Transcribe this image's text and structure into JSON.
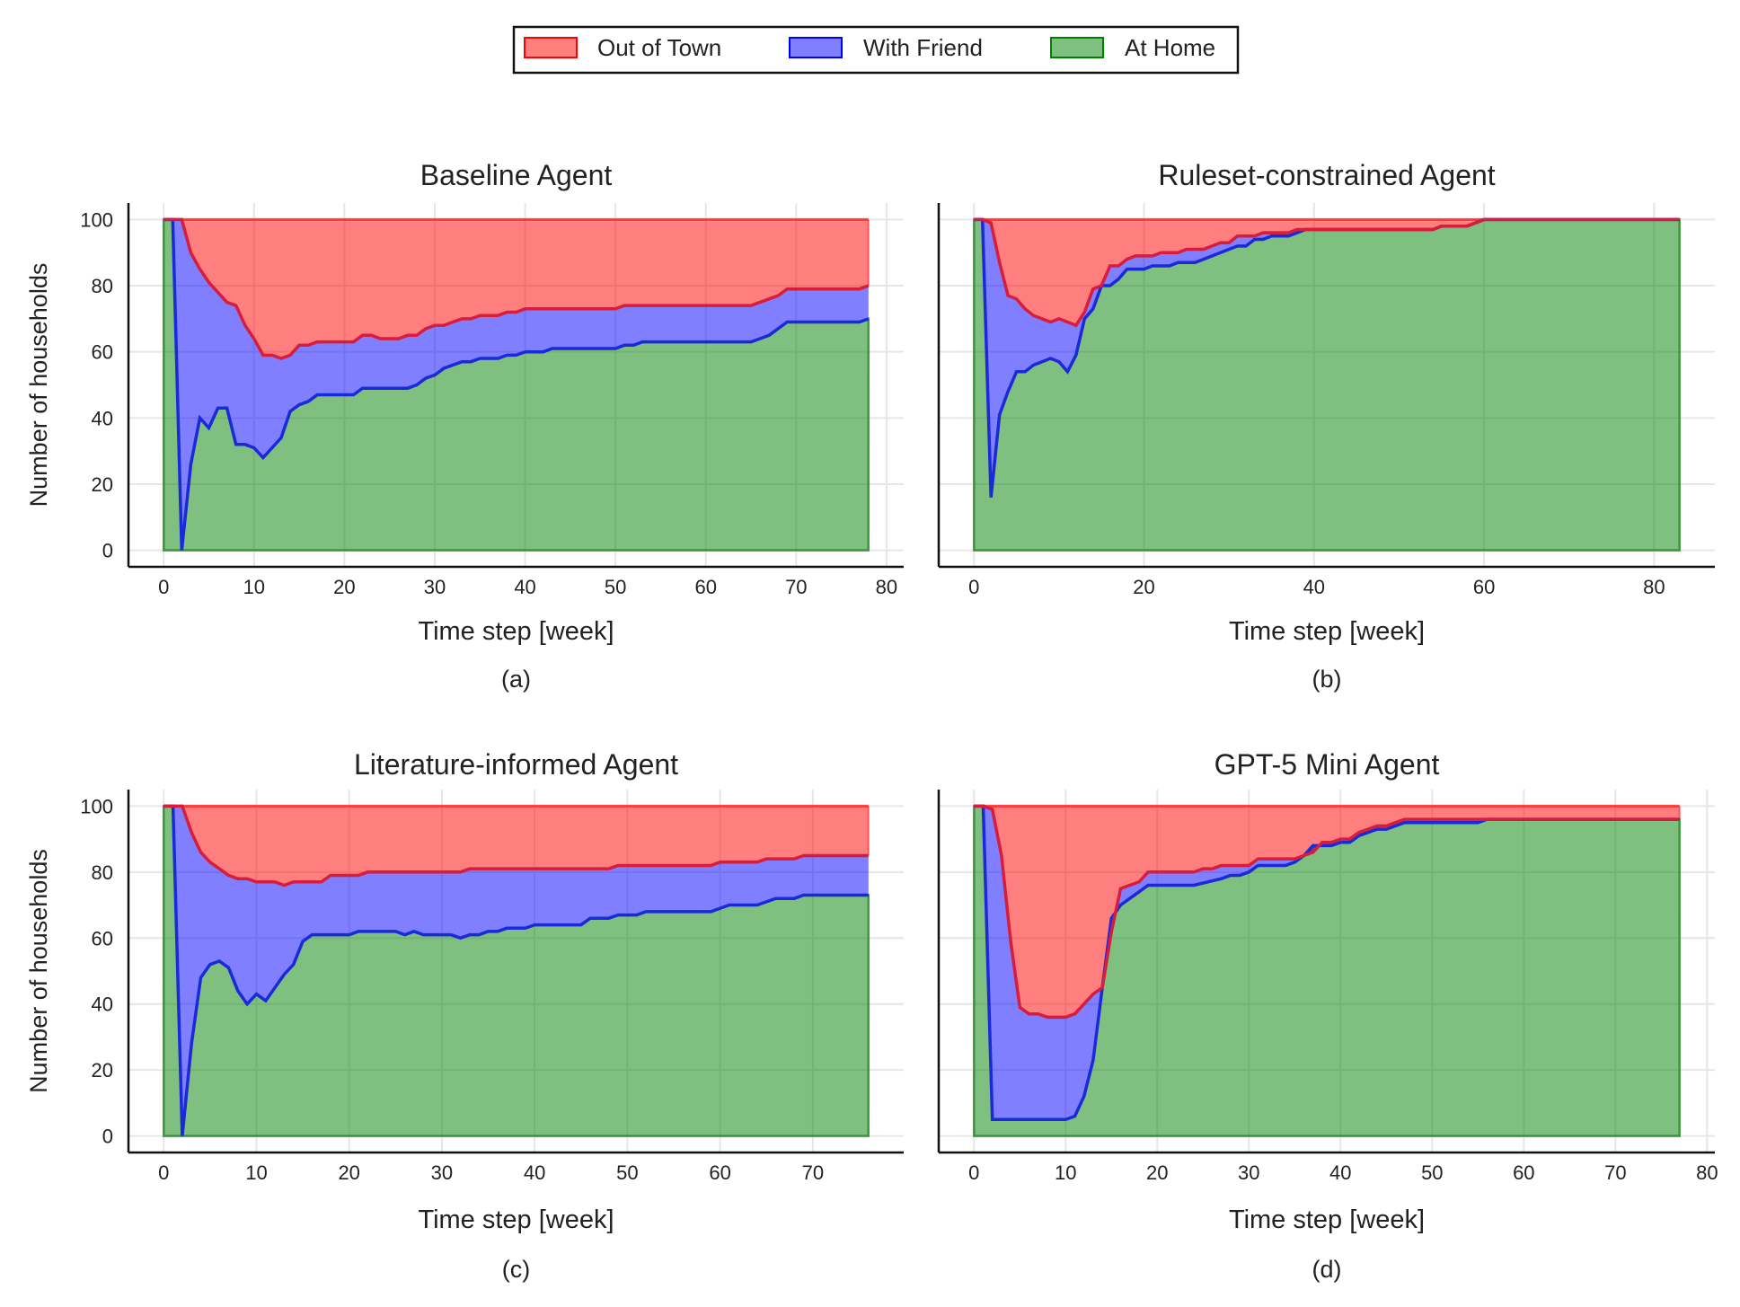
{
  "legend": {
    "items": [
      {
        "label": "Out of Town",
        "color": "#ff0000"
      },
      {
        "label": "With Friend",
        "color": "#0000ff"
      },
      {
        "label": "At Home",
        "color": "#008000"
      }
    ]
  },
  "chart_data": [
    {
      "type": "area",
      "title": "Baseline Agent",
      "caption": "(a)",
      "xlabel": "Time step [week]",
      "ylabel": "Number of households",
      "xlim": [
        -3.9,
        81.9
      ],
      "ylim": [
        -5,
        105
      ],
      "xticks": [
        0,
        10,
        20,
        30,
        40,
        50,
        60,
        70,
        80
      ],
      "yticks": [
        0,
        20,
        40,
        60,
        80,
        100
      ],
      "xmax": 78,
      "total": 100,
      "at_home": [
        [
          0,
          100
        ],
        [
          1,
          100
        ],
        [
          2,
          0
        ],
        [
          3,
          26
        ],
        [
          4,
          40
        ],
        [
          5,
          37
        ],
        [
          6,
          43
        ],
        [
          7,
          43
        ],
        [
          8,
          32
        ],
        [
          9,
          32
        ],
        [
          10,
          31
        ],
        [
          11,
          28
        ],
        [
          12,
          31
        ],
        [
          13,
          34
        ],
        [
          14,
          42
        ],
        [
          15,
          44
        ],
        [
          16,
          45
        ],
        [
          17,
          47
        ],
        [
          21,
          47
        ],
        [
          22,
          49
        ],
        [
          27,
          49
        ],
        [
          28,
          50
        ],
        [
          29,
          52
        ],
        [
          30,
          53
        ],
        [
          31,
          55
        ],
        [
          33,
          57
        ],
        [
          34,
          57
        ],
        [
          35,
          58
        ],
        [
          37,
          58
        ],
        [
          38,
          59
        ],
        [
          39,
          59
        ],
        [
          40,
          60
        ],
        [
          42,
          60
        ],
        [
          43,
          61
        ],
        [
          50,
          61
        ],
        [
          51,
          62
        ],
        [
          52,
          62
        ],
        [
          53,
          63
        ],
        [
          65,
          63
        ],
        [
          66,
          64
        ],
        [
          67,
          65
        ],
        [
          69,
          69
        ],
        [
          77,
          69
        ],
        [
          78,
          70
        ]
      ],
      "at_home_plus_with_friend": [
        [
          0,
          100
        ],
        [
          2,
          100
        ],
        [
          3,
          90
        ],
        [
          4,
          85
        ],
        [
          5,
          81
        ],
        [
          6,
          78
        ],
        [
          7,
          75
        ],
        [
          8,
          74
        ],
        [
          9,
          68
        ],
        [
          10,
          64
        ],
        [
          11,
          59
        ],
        [
          12,
          59
        ],
        [
          13,
          58
        ],
        [
          14,
          59
        ],
        [
          15,
          62
        ],
        [
          16,
          62
        ],
        [
          17,
          63
        ],
        [
          21,
          63
        ],
        [
          22,
          65
        ],
        [
          23,
          65
        ],
        [
          24,
          64
        ],
        [
          26,
          64
        ],
        [
          27,
          65
        ],
        [
          28,
          65
        ],
        [
          29,
          67
        ],
        [
          30,
          68
        ],
        [
          31,
          68
        ],
        [
          32,
          69
        ],
        [
          33,
          70
        ],
        [
          34,
          70
        ],
        [
          35,
          71
        ],
        [
          37,
          71
        ],
        [
          38,
          72
        ],
        [
          39,
          72
        ],
        [
          40,
          73
        ],
        [
          50,
          73
        ],
        [
          51,
          74
        ],
        [
          65,
          74
        ],
        [
          67,
          76
        ],
        [
          68,
          77
        ],
        [
          69,
          79
        ],
        [
          77,
          79
        ],
        [
          78,
          80
        ]
      ]
    },
    {
      "type": "area",
      "title": "Ruleset-constrained Agent",
      "caption": "(b)",
      "xlabel": "Time step [week]",
      "ylabel": "",
      "xlim": [
        -4.15,
        87.15
      ],
      "ylim": [
        -5,
        105
      ],
      "xticks": [
        0,
        20,
        40,
        60,
        80
      ],
      "yticks": [
        0,
        20,
        40,
        60,
        80,
        100
      ],
      "xmax": 83,
      "total": 100,
      "at_home": [
        [
          0,
          100
        ],
        [
          1,
          100
        ],
        [
          2,
          16
        ],
        [
          3,
          41
        ],
        [
          4,
          48
        ],
        [
          5,
          54
        ],
        [
          6,
          54
        ],
        [
          7,
          56
        ],
        [
          8,
          57
        ],
        [
          9,
          58
        ],
        [
          10,
          57
        ],
        [
          11,
          54
        ],
        [
          12,
          59
        ],
        [
          13,
          70
        ],
        [
          14,
          73
        ],
        [
          15,
          80
        ],
        [
          16,
          80
        ],
        [
          17,
          82
        ],
        [
          18,
          85
        ],
        [
          20,
          85
        ],
        [
          21,
          86
        ],
        [
          23,
          86
        ],
        [
          24,
          87
        ],
        [
          26,
          87
        ],
        [
          27,
          88
        ],
        [
          30,
          91
        ],
        [
          31,
          92
        ],
        [
          32,
          92
        ],
        [
          33,
          94
        ],
        [
          34,
          94
        ],
        [
          35,
          95
        ],
        [
          37,
          95
        ],
        [
          38,
          96
        ],
        [
          39,
          97
        ],
        [
          54,
          97
        ],
        [
          55,
          98
        ],
        [
          58,
          98
        ],
        [
          60,
          100
        ],
        [
          83,
          100
        ]
      ],
      "at_home_plus_with_friend": [
        [
          0,
          100
        ],
        [
          1,
          100
        ],
        [
          2,
          99
        ],
        [
          3,
          87
        ],
        [
          4,
          77
        ],
        [
          5,
          76
        ],
        [
          6,
          73
        ],
        [
          7,
          71
        ],
        [
          8,
          70
        ],
        [
          9,
          69
        ],
        [
          10,
          70
        ],
        [
          11,
          69
        ],
        [
          12,
          68
        ],
        [
          13,
          72
        ],
        [
          14,
          79
        ],
        [
          15,
          80
        ],
        [
          16,
          86
        ],
        [
          17,
          86
        ],
        [
          18,
          88
        ],
        [
          19,
          89
        ],
        [
          21,
          89
        ],
        [
          22,
          90
        ],
        [
          24,
          90
        ],
        [
          25,
          91
        ],
        [
          27,
          91
        ],
        [
          28,
          92
        ],
        [
          29,
          93
        ],
        [
          30,
          93
        ],
        [
          31,
          95
        ],
        [
          33,
          95
        ],
        [
          34,
          96
        ],
        [
          37,
          96
        ],
        [
          38,
          97
        ],
        [
          54,
          97
        ],
        [
          55,
          98
        ],
        [
          58,
          98
        ],
        [
          60,
          100
        ],
        [
          83,
          100
        ]
      ]
    },
    {
      "type": "area",
      "title": "Literature-informed Agent",
      "caption": "(c)",
      "xlabel": "Time step [week]",
      "ylabel": "Number of households",
      "xlim": [
        -3.8,
        79.8
      ],
      "ylim": [
        -5,
        105
      ],
      "xticks": [
        0,
        10,
        20,
        30,
        40,
        50,
        60,
        70
      ],
      "yticks": [
        0,
        20,
        40,
        60,
        80,
        100
      ],
      "xmax": 76,
      "total": 100,
      "at_home": [
        [
          0,
          100
        ],
        [
          1,
          100
        ],
        [
          2,
          0
        ],
        [
          3,
          28
        ],
        [
          4,
          48
        ],
        [
          5,
          52
        ],
        [
          6,
          53
        ],
        [
          7,
          51
        ],
        [
          8,
          44
        ],
        [
          9,
          40
        ],
        [
          10,
          43
        ],
        [
          11,
          41
        ],
        [
          12,
          45
        ],
        [
          13,
          49
        ],
        [
          14,
          52
        ],
        [
          15,
          59
        ],
        [
          16,
          61
        ],
        [
          20,
          61
        ],
        [
          21,
          62
        ],
        [
          25,
          62
        ],
        [
          26,
          61
        ],
        [
          27,
          62
        ],
        [
          28,
          61
        ],
        [
          31,
          61
        ],
        [
          32,
          60
        ],
        [
          33,
          61
        ],
        [
          34,
          61
        ],
        [
          35,
          62
        ],
        [
          36,
          62
        ],
        [
          37,
          63
        ],
        [
          39,
          63
        ],
        [
          40,
          64
        ],
        [
          45,
          64
        ],
        [
          46,
          66
        ],
        [
          48,
          66
        ],
        [
          49,
          67
        ],
        [
          51,
          67
        ],
        [
          52,
          68
        ],
        [
          59,
          68
        ],
        [
          61,
          70
        ],
        [
          64,
          70
        ],
        [
          66,
          72
        ],
        [
          68,
          72
        ],
        [
          69,
          73
        ],
        [
          76,
          73
        ]
      ],
      "at_home_plus_with_friend": [
        [
          0,
          100
        ],
        [
          2,
          100
        ],
        [
          3,
          92
        ],
        [
          4,
          86
        ],
        [
          5,
          83
        ],
        [
          6,
          81
        ],
        [
          7,
          79
        ],
        [
          8,
          78
        ],
        [
          9,
          78
        ],
        [
          10,
          77
        ],
        [
          12,
          77
        ],
        [
          13,
          76
        ],
        [
          14,
          77
        ],
        [
          17,
          77
        ],
        [
          18,
          79
        ],
        [
          21,
          79
        ],
        [
          22,
          80
        ],
        [
          32,
          80
        ],
        [
          33,
          81
        ],
        [
          48,
          81
        ],
        [
          49,
          82
        ],
        [
          59,
          82
        ],
        [
          60,
          83
        ],
        [
          64,
          83
        ],
        [
          65,
          84
        ],
        [
          68,
          84
        ],
        [
          69,
          85
        ],
        [
          76,
          85
        ]
      ]
    },
    {
      "type": "area",
      "title": "GPT-5 Mini Agent",
      "caption": "(d)",
      "xlabel": "Time step [week]",
      "ylabel": "",
      "xlim": [
        -3.85,
        80.85
      ],
      "ylim": [
        -5,
        105
      ],
      "xticks": [
        0,
        10,
        20,
        30,
        40,
        50,
        60,
        70,
        80
      ],
      "yticks": [
        0,
        20,
        40,
        60,
        80,
        100
      ],
      "xmax": 77,
      "total": 100,
      "at_home": [
        [
          0,
          100
        ],
        [
          1,
          100
        ],
        [
          2,
          5
        ],
        [
          10,
          5
        ],
        [
          11,
          6
        ],
        [
          12,
          12
        ],
        [
          13,
          23
        ],
        [
          14,
          45
        ],
        [
          15,
          66
        ],
        [
          16,
          70
        ],
        [
          17,
          72
        ],
        [
          18,
          74
        ],
        [
          19,
          76
        ],
        [
          24,
          76
        ],
        [
          27,
          78
        ],
        [
          28,
          79
        ],
        [
          29,
          79
        ],
        [
          30,
          80
        ],
        [
          31,
          82
        ],
        [
          34,
          82
        ],
        [
          35,
          83
        ],
        [
          36,
          85
        ],
        [
          37,
          88
        ],
        [
          39,
          88
        ],
        [
          40,
          89
        ],
        [
          41,
          89
        ],
        [
          42,
          91
        ],
        [
          43,
          92
        ],
        [
          44,
          93
        ],
        [
          45,
          93
        ],
        [
          46,
          94
        ],
        [
          47,
          95
        ],
        [
          55,
          95
        ],
        [
          56,
          96
        ],
        [
          77,
          96
        ]
      ],
      "at_home_plus_with_friend": [
        [
          0,
          100
        ],
        [
          1,
          100
        ],
        [
          2,
          99
        ],
        [
          3,
          85
        ],
        [
          4,
          59
        ],
        [
          5,
          39
        ],
        [
          6,
          37
        ],
        [
          7,
          37
        ],
        [
          8,
          36
        ],
        [
          10,
          36
        ],
        [
          11,
          37
        ],
        [
          12,
          40
        ],
        [
          13,
          43
        ],
        [
          14,
          45
        ],
        [
          15,
          62
        ],
        [
          16,
          75
        ],
        [
          18,
          77
        ],
        [
          19,
          80
        ],
        [
          24,
          80
        ],
        [
          25,
          81
        ],
        [
          26,
          81
        ],
        [
          27,
          82
        ],
        [
          30,
          82
        ],
        [
          31,
          84
        ],
        [
          35,
          84
        ],
        [
          36,
          85
        ],
        [
          37,
          86
        ],
        [
          38,
          89
        ],
        [
          39,
          89
        ],
        [
          40,
          90
        ],
        [
          41,
          90
        ],
        [
          42,
          92
        ],
        [
          43,
          93
        ],
        [
          44,
          94
        ],
        [
          45,
          94
        ],
        [
          46,
          95
        ],
        [
          47,
          96
        ],
        [
          77,
          96
        ]
      ]
    }
  ]
}
